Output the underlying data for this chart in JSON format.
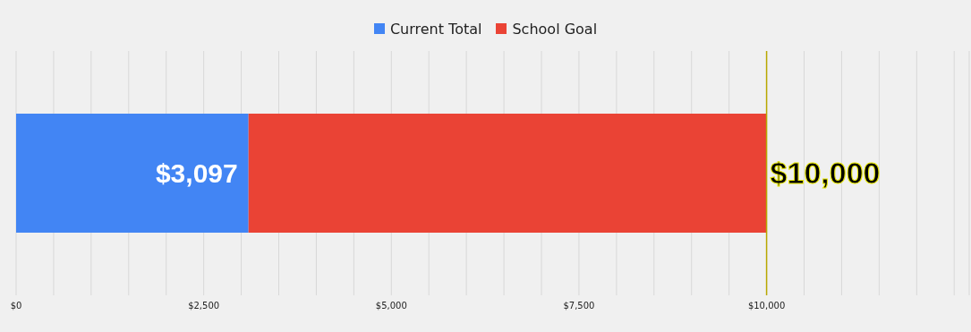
{
  "chart_data": {
    "type": "bar",
    "orientation": "horizontal",
    "stacked": true,
    "categories": [
      null
    ],
    "series": [
      {
        "name": "Current Total",
        "color": "#4285f4",
        "values": [
          3097
        ],
        "value_labels": [
          "$3,097"
        ]
      },
      {
        "name": "School Goal",
        "color": "#ea4335",
        "values": [
          6903
        ]
      }
    ],
    "totals": [
      "$10,000"
    ],
    "xlim": [
      0,
      12700
    ],
    "xticks": [
      {
        "value": 0,
        "label": "$0"
      },
      {
        "value": 500,
        "label": null
      },
      {
        "value": 1000,
        "label": null
      },
      {
        "value": 1500,
        "label": null
      },
      {
        "value": 2000,
        "label": null
      },
      {
        "value": 2500,
        "label": "$2,500"
      },
      {
        "value": 3000,
        "label": null
      },
      {
        "value": 3500,
        "label": null
      },
      {
        "value": 4000,
        "label": null
      },
      {
        "value": 4500,
        "label": null
      },
      {
        "value": 5000,
        "label": "$5,000"
      },
      {
        "value": 5500,
        "label": null
      },
      {
        "value": 6000,
        "label": null
      },
      {
        "value": 6500,
        "label": null
      },
      {
        "value": 7000,
        "label": null
      },
      {
        "value": 7500,
        "label": "$7,500"
      },
      {
        "value": 8000,
        "label": null
      },
      {
        "value": 8500,
        "label": null
      },
      {
        "value": 9000,
        "label": null
      },
      {
        "value": 9500,
        "label": null
      },
      {
        "value": 10000,
        "label": "$10,000"
      },
      {
        "value": 10500,
        "label": null
      },
      {
        "value": 11000,
        "label": null
      },
      {
        "value": 11500,
        "label": null
      },
      {
        "value": 12000,
        "label": null
      },
      {
        "value": 12500,
        "label": null
      }
    ],
    "ref_lines": [
      {
        "axis": "x",
        "value": 10000,
        "color": "#b8a800"
      }
    ],
    "grid": "x",
    "legend": "top"
  }
}
